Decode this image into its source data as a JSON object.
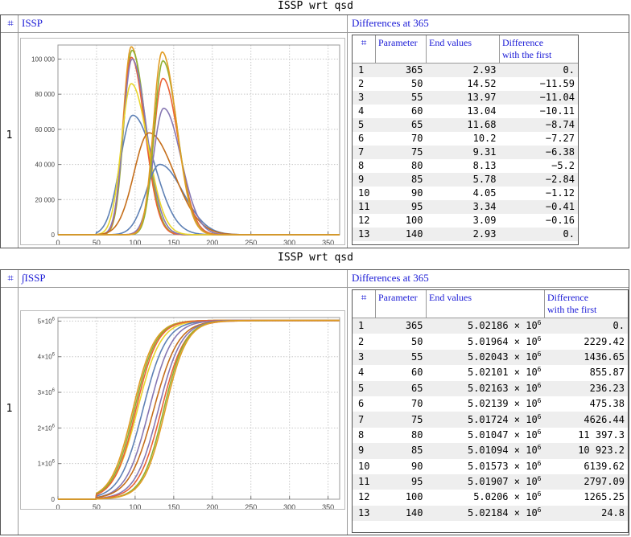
{
  "panel1": {
    "title": "ISSP wrt qsd",
    "col_num": "⌗",
    "col_plot": "ISSP",
    "col_table": "Differences at 365",
    "row_label": "1",
    "plot": {
      "y_ticks": [
        "0",
        "20 000",
        "40 000",
        "60 000",
        "80 000",
        "100 000"
      ],
      "x_ticks": [
        "0",
        "50",
        "100",
        "150",
        "200",
        "250",
        "300",
        "350"
      ]
    },
    "table": {
      "headers": [
        "⌗",
        "Parameter",
        "End values",
        "Difference with the first"
      ],
      "rows": [
        [
          "1",
          "365",
          "2.93",
          "0."
        ],
        [
          "2",
          "50",
          "14.52",
          "−11.59"
        ],
        [
          "3",
          "55",
          "13.97",
          "−11.04"
        ],
        [
          "4",
          "60",
          "13.04",
          "−10.11"
        ],
        [
          "5",
          "65",
          "11.68",
          "−8.74"
        ],
        [
          "6",
          "70",
          "10.2",
          "−7.27"
        ],
        [
          "7",
          "75",
          "9.31",
          "−6.38"
        ],
        [
          "8",
          "80",
          "8.13",
          "−5.2"
        ],
        [
          "9",
          "85",
          "5.78",
          "−2.84"
        ],
        [
          "10",
          "90",
          "4.05",
          "−1.12"
        ],
        [
          "11",
          "95",
          "3.34",
          "−0.41"
        ],
        [
          "12",
          "100",
          "3.09",
          "−0.16"
        ],
        [
          "13",
          "140",
          "2.93",
          "0."
        ]
      ]
    }
  },
  "panel2": {
    "title": "ISSP wrt qsd",
    "col_num": "⌗",
    "col_plot": "∫ISSP",
    "col_table": "Differences at 365",
    "row_label": "1",
    "plot": {
      "y_ticks": [
        "0",
        "1×10",
        "2×10",
        "3×10",
        "4×10",
        "5×10"
      ],
      "y_exp": "6",
      "x_ticks": [
        "0",
        "50",
        "100",
        "150",
        "200",
        "250",
        "300",
        "350"
      ]
    },
    "table": {
      "headers": [
        "⌗",
        "Parameter",
        "End values",
        "Difference with the first"
      ],
      "exp": "6",
      "rows": [
        [
          "1",
          "365",
          "5.02186",
          "0."
        ],
        [
          "2",
          "50",
          "5.01964",
          "2229.42"
        ],
        [
          "3",
          "55",
          "5.02043",
          "1436.65"
        ],
        [
          "4",
          "60",
          "5.02101",
          "855.87"
        ],
        [
          "5",
          "65",
          "5.02163",
          "236.23"
        ],
        [
          "6",
          "70",
          "5.02139",
          "475.38"
        ],
        [
          "7",
          "75",
          "5.01724",
          "4626.44"
        ],
        [
          "8",
          "80",
          "5.01047",
          "11 397.3"
        ],
        [
          "9",
          "85",
          "5.01094",
          "10 923.2"
        ],
        [
          "10",
          "90",
          "5.01573",
          "6139.62"
        ],
        [
          "11",
          "95",
          "5.01907",
          "2797.09"
        ],
        [
          "12",
          "100",
          "5.0206",
          "1265.25"
        ],
        [
          "13",
          "140",
          "5.02184",
          "24.8"
        ]
      ]
    }
  },
  "chart_data": [
    {
      "type": "line",
      "title": "ISSP",
      "xlim": [
        0,
        365
      ],
      "ylim": [
        0,
        108000
      ],
      "series": [
        {
          "name": "curve-1",
          "color": "#5e81b5",
          "peak_x": 97,
          "peak_y": 68000,
          "width": 22
        },
        {
          "name": "curve-2",
          "color": "#e19c24",
          "peak_x": 95,
          "peak_y": 107000,
          "width": 14
        },
        {
          "name": "curve-3",
          "color": "#8fb032",
          "peak_x": 96,
          "peak_y": 105000,
          "width": 14
        },
        {
          "name": "curve-4",
          "color": "#eb6235",
          "peak_x": 95,
          "peak_y": 101000,
          "width": 14
        },
        {
          "name": "curve-5",
          "color": "#8778b3",
          "peak_x": 96,
          "peak_y": 100000,
          "width": 15
        },
        {
          "name": "curve-6",
          "color": "#e8d52a",
          "peak_x": 95,
          "peak_y": 86000,
          "width": 17
        },
        {
          "name": "curve-7",
          "color": "#5e81b5",
          "peak_x": 132,
          "peak_y": 40000,
          "width": 24
        },
        {
          "name": "curve-8",
          "color": "#c56e1a",
          "peak_x": 118,
          "peak_y": 58000,
          "width": 26
        },
        {
          "name": "curve-9",
          "color": "#8778b3",
          "peak_x": 137,
          "peak_y": 72000,
          "width": 18
        },
        {
          "name": "curve-10",
          "color": "#eb6235",
          "peak_x": 136,
          "peak_y": 89000,
          "width": 16
        },
        {
          "name": "curve-11",
          "color": "#8fb032",
          "peak_x": 136,
          "peak_y": 99000,
          "width": 15
        },
        {
          "name": "curve-12",
          "color": "#e19c24",
          "peak_x": 135,
          "peak_y": 104000,
          "width": 15
        }
      ]
    },
    {
      "type": "line",
      "title": "∫ISSP",
      "xlim": [
        0,
        365
      ],
      "ylim": [
        0,
        5100000
      ],
      "series": [
        {
          "name": "cum-1",
          "color": "#e8d52a",
          "mid_x": 103,
          "scale": 15,
          "end": 5021860
        },
        {
          "name": "cum-2",
          "color": "#5e81b5",
          "mid_x": 110,
          "scale": 15,
          "end": 5019640
        },
        {
          "name": "cum-3",
          "color": "#e19c24",
          "mid_x": 97,
          "scale": 14,
          "end": 5020430
        },
        {
          "name": "cum-4",
          "color": "#8fb032",
          "mid_x": 99,
          "scale": 14,
          "end": 5021010
        },
        {
          "name": "cum-5",
          "color": "#eb6235",
          "mid_x": 101,
          "scale": 14,
          "end": 5021630
        },
        {
          "name": "cum-6",
          "color": "#8778b3",
          "mid_x": 118,
          "scale": 15,
          "end": 5021390
        },
        {
          "name": "cum-7",
          "color": "#c56e1a",
          "mid_x": 124,
          "scale": 16,
          "end": 5017240
        },
        {
          "name": "cum-8",
          "color": "#8778b3",
          "mid_x": 130,
          "scale": 15,
          "end": 5010470
        },
        {
          "name": "cum-9",
          "color": "#eb6235",
          "mid_x": 134,
          "scale": 15,
          "end": 5010940
        },
        {
          "name": "cum-10",
          "color": "#8fb032",
          "mid_x": 137,
          "scale": 14,
          "end": 5015730
        },
        {
          "name": "cum-11",
          "color": "#e19c24",
          "mid_x": 139,
          "scale": 14,
          "end": 5019070
        }
      ]
    }
  ]
}
